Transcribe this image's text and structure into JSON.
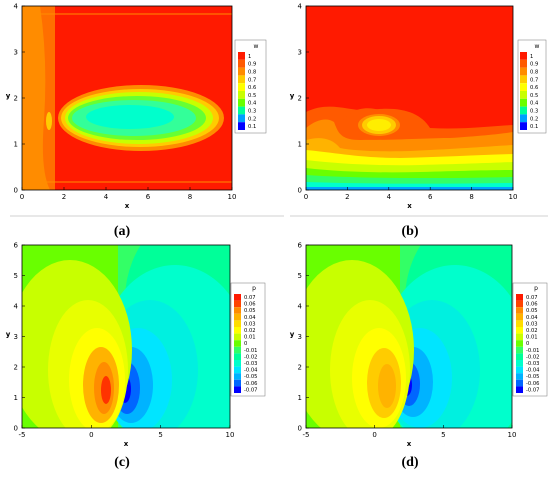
{
  "captions": {
    "a": "(a)",
    "b": "(b)",
    "c": "(c)",
    "d": "(d)"
  },
  "colors": {
    "red": "#ff1a00",
    "orange_red": "#ff5a00",
    "orange": "#ff8c00",
    "amber": "#ffb300",
    "yellow": "#ffff00",
    "yellow_green": "#c8ff00",
    "green": "#69ff00",
    "mint": "#33ff66",
    "spring": "#00ff99",
    "aqua": "#00ffcc",
    "cyan": "#00e5ff",
    "teal": "#00f0e0",
    "blue": "#0000ff"
  },
  "chart_data": [
    {
      "id": "a",
      "type": "heatmap",
      "variable": "w",
      "xlabel": "x",
      "ylabel": "y",
      "xlim": [
        0,
        10
      ],
      "ylim": [
        0,
        4
      ],
      "xticks": [
        "0",
        "2",
        "4",
        "6",
        "8",
        "10"
      ],
      "yticks": [
        "0",
        "1",
        "2",
        "3",
        "4"
      ],
      "legend_title": "w",
      "legend_levels": [
        "1",
        "0.9",
        "0.8",
        "0.7",
        "0.6",
        "0.5",
        "0.4",
        "0.3",
        "0.2",
        "0.1"
      ]
    },
    {
      "id": "b",
      "type": "heatmap",
      "variable": "w",
      "xlabel": "x",
      "ylabel": "y",
      "xlim": [
        0,
        10
      ],
      "ylim": [
        0,
        4
      ],
      "xticks": [
        "0",
        "2",
        "4",
        "6",
        "8",
        "10"
      ],
      "yticks": [
        "0",
        "1",
        "2",
        "3",
        "4"
      ],
      "legend_title": "w",
      "legend_levels": [
        "1",
        "0.9",
        "0.8",
        "0.7",
        "0.6",
        "0.5",
        "0.4",
        "0.3",
        "0.2",
        "0.1"
      ]
    },
    {
      "id": "c",
      "type": "heatmap",
      "variable": "p",
      "xlabel": "x",
      "ylabel": "y",
      "xlim": [
        -5,
        10
      ],
      "ylim": [
        0,
        6
      ],
      "xticks": [
        "-5",
        "0",
        "5",
        "10"
      ],
      "yticks": [
        "0",
        "1",
        "2",
        "3",
        "4",
        "5",
        "6"
      ],
      "legend_title": "p",
      "legend_levels": [
        "0.07",
        "0.06",
        "0.05",
        "0.04",
        "0.03",
        "0.02",
        "0.01",
        "0",
        "-0.01",
        "-0.02",
        "-0.03",
        "-0.04",
        "-0.05",
        "-0.06",
        "-0.07"
      ]
    },
    {
      "id": "d",
      "type": "heatmap",
      "variable": "p",
      "xlabel": "x",
      "ylabel": "y",
      "xlim": [
        -5,
        10
      ],
      "ylim": [
        0,
        6
      ],
      "xticks": [
        "-5",
        "0",
        "5",
        "10"
      ],
      "yticks": [
        "0",
        "1",
        "2",
        "3",
        "4",
        "5",
        "6"
      ],
      "legend_title": "p",
      "legend_levels": [
        "0.07",
        "0.06",
        "0.05",
        "0.04",
        "0.03",
        "0.02",
        "0.01",
        "0",
        "-0.01",
        "-0.02",
        "-0.03",
        "-0.04",
        "-0.05",
        "-0.06",
        "-0.07"
      ]
    }
  ]
}
